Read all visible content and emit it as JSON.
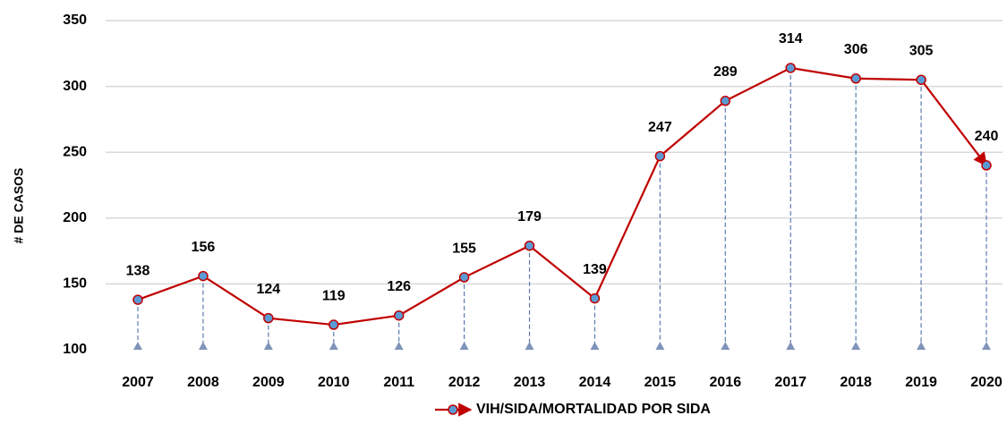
{
  "chart_data": {
    "type": "line",
    "y_label": "# DE CASOS",
    "categories": [
      "2007",
      "2008",
      "2009",
      "2010",
      "2011",
      "2012",
      "2013",
      "2014",
      "2015",
      "2016",
      "2017",
      "2018",
      "2019",
      "2020"
    ],
    "series": [
      {
        "name": "VIH/SIDA/MORTALIDAD POR SIDA",
        "color": "#c00000",
        "marker_color": "#5b9bd5",
        "values": [
          138,
          156,
          124,
          119,
          126,
          155,
          179,
          139,
          247,
          289,
          314,
          306,
          305,
          240
        ]
      }
    ],
    "ylim": [
      100,
      350
    ],
    "yticks": [
      100,
      150,
      200,
      250,
      300,
      350
    ],
    "grid": true,
    "legend": "bottom"
  }
}
